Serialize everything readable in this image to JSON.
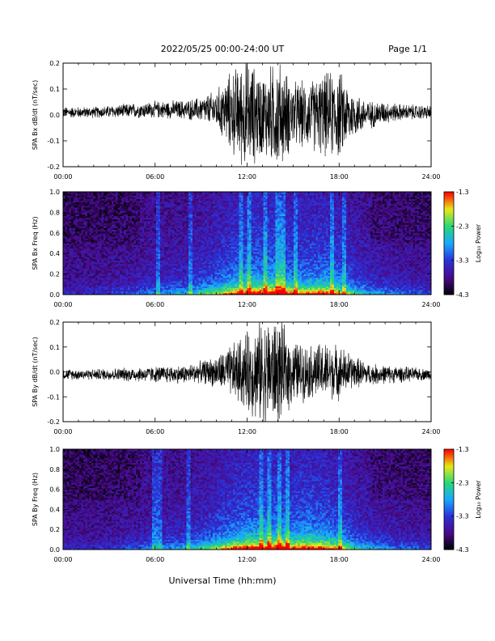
{
  "header": {
    "title": "2022/05/25  00:00-24:00 UT",
    "page": "Page 1/1"
  },
  "footer": {
    "xlabel": "Universal Time (hh:mm)"
  },
  "colormap": {
    "stops": [
      "#000000",
      "#4a0a8a",
      "#2a30d8",
      "#18a8ff",
      "#28d878",
      "#e8e818",
      "#ff0000"
    ],
    "background": "#3a1a78"
  },
  "chart_data": [
    {
      "type": "line",
      "ylabel": "SPA Bx dB/dt (nT/sec)",
      "ylim": [
        -0.2,
        0.2
      ],
      "yticks": [
        "-0.2",
        "-0.1",
        "0.0",
        "0.1",
        "0.2"
      ],
      "xlim_hours": [
        0,
        24
      ],
      "xticks": [
        "00:00",
        "06:00",
        "12:00",
        "18:00",
        "24:00"
      ],
      "series": [
        {
          "x_hours": [
            0,
            2,
            4,
            6,
            8,
            9,
            10,
            11,
            12,
            13,
            14,
            15,
            16,
            17,
            18,
            19,
            20,
            21,
            22,
            24
          ],
          "amplitude": [
            0.02,
            0.02,
            0.025,
            0.03,
            0.035,
            0.045,
            0.07,
            0.15,
            0.2,
            0.15,
            0.2,
            0.12,
            0.12,
            0.15,
            0.16,
            0.08,
            0.05,
            0.04,
            0.03,
            0.025
          ],
          "offset": [
            0.01,
            0.01,
            0.015,
            0.02,
            0.02,
            0.02,
            0.02,
            0.01,
            0.0,
            0.0,
            0.0,
            0.0,
            0.0,
            0.0,
            0.0,
            0.0,
            0.0,
            0.01,
            0.01,
            0.01
          ]
        }
      ]
    },
    {
      "type": "heatmap",
      "ylabel": "SPA Bx Freq (Hz)",
      "ylim": [
        0.0,
        1.0
      ],
      "yticks": [
        "0.0",
        "0.2",
        "0.4",
        "0.6",
        "0.8",
        "1.0"
      ],
      "xlim_hours": [
        0,
        24
      ],
      "xticks": [
        "00:00",
        "06:00",
        "12:00",
        "18:00",
        "24:00"
      ],
      "colorbar": {
        "label": "Log₁₀ Power",
        "ticks": [
          "-1.3",
          "-2.3",
          "-3.3",
          "-4.3"
        ],
        "range": [
          -4.3,
          -1.3
        ]
      },
      "activity": {
        "x_hours": [
          0,
          2,
          4,
          6,
          8,
          9,
          10,
          11,
          12,
          13,
          14,
          15,
          16,
          17,
          18,
          19,
          20,
          21,
          22,
          24
        ],
        "level": [
          0.15,
          0.15,
          0.2,
          0.3,
          0.35,
          0.45,
          0.55,
          0.7,
          0.8,
          0.8,
          0.85,
          0.7,
          0.7,
          0.75,
          0.65,
          0.45,
          0.35,
          0.3,
          0.25,
          0.2
        ]
      },
      "vertical_streaks_hours": [
        6.2,
        8.3,
        11.6,
        12.1,
        13.2,
        14.0,
        14.3,
        15.2,
        17.5,
        18.3
      ]
    },
    {
      "type": "line",
      "ylabel": "SPA By dB/dt (nT/sec)",
      "ylim": [
        -0.2,
        0.2
      ],
      "yticks": [
        "-0.2",
        "-0.1",
        "0.0",
        "0.1",
        "0.2"
      ],
      "xlim_hours": [
        0,
        24
      ],
      "xticks": [
        "00:00",
        "06:00",
        "12:00",
        "18:00",
        "24:00"
      ],
      "series": [
        {
          "x_hours": [
            0,
            2,
            4,
            6,
            8,
            9,
            10,
            11,
            12,
            13,
            14,
            15,
            16,
            17,
            18,
            19,
            20,
            21,
            22,
            24
          ],
          "amplitude": [
            0.02,
            0.02,
            0.025,
            0.03,
            0.035,
            0.04,
            0.06,
            0.1,
            0.15,
            0.2,
            0.2,
            0.12,
            0.1,
            0.11,
            0.1,
            0.06,
            0.04,
            0.035,
            0.03,
            0.02
          ],
          "offset": [
            -0.01,
            -0.01,
            -0.01,
            -0.01,
            -0.01,
            0.0,
            0.0,
            0.0,
            0.0,
            0.0,
            0.0,
            0.0,
            0.0,
            0.0,
            0.0,
            0.0,
            -0.01,
            -0.01,
            -0.01,
            -0.01
          ]
        }
      ]
    },
    {
      "type": "heatmap",
      "ylabel": "SPA By Freq (Hz)",
      "ylim": [
        0.0,
        1.0
      ],
      "yticks": [
        "0.0",
        "0.2",
        "0.4",
        "0.6",
        "0.8",
        "1.0"
      ],
      "xlim_hours": [
        0,
        24
      ],
      "xticks": [
        "00:00",
        "06:00",
        "12:00",
        "18:00",
        "24:00"
      ],
      "colorbar": {
        "label": "Log₁₀ Power",
        "ticks": [
          "-1.3",
          "-2.3",
          "-3.3",
          "-4.3"
        ],
        "range": [
          -4.3,
          -1.3
        ]
      },
      "activity": {
        "x_hours": [
          0,
          2,
          4,
          6,
          8,
          9,
          10,
          11,
          12,
          13,
          14,
          15,
          16,
          17,
          18,
          19,
          20,
          21,
          22,
          24
        ],
        "level": [
          0.15,
          0.15,
          0.2,
          0.3,
          0.35,
          0.45,
          0.55,
          0.7,
          0.8,
          0.8,
          0.85,
          0.75,
          0.8,
          0.75,
          0.65,
          0.45,
          0.35,
          0.3,
          0.25,
          0.2
        ]
      },
      "vertical_streaks_hours": [
        6.0,
        6.3,
        8.2,
        12.9,
        13.4,
        14.1,
        14.6,
        18.1
      ]
    }
  ]
}
